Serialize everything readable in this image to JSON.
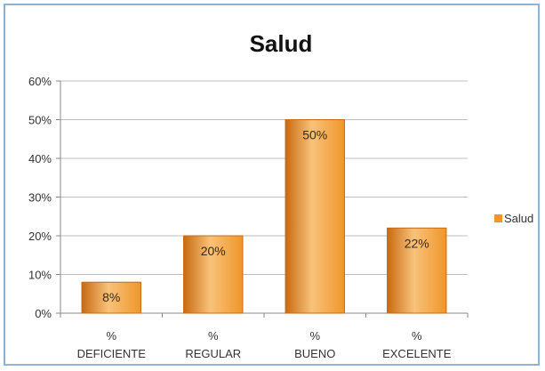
{
  "chart_data": {
    "type": "bar",
    "title": "Salud",
    "categories": [
      [
        "%",
        "DEFICIENTE"
      ],
      [
        "%",
        "REGULAR"
      ],
      [
        "%",
        "BUENO"
      ],
      [
        "%",
        "EXCELENTE"
      ]
    ],
    "series": [
      {
        "name": "Salud",
        "values": [
          8,
          20,
          50,
          22
        ]
      }
    ],
    "data_labels": [
      "8%",
      "20%",
      "50%",
      "22%"
    ],
    "ylim": [
      0,
      60
    ],
    "yticks": [
      0,
      10,
      20,
      30,
      40,
      50,
      60
    ],
    "ytick_labels": [
      "0%",
      "10%",
      "20%",
      "30%",
      "40%",
      "50%",
      "60%"
    ],
    "grid": true,
    "legend_position": "right",
    "colors": {
      "bar": "#f0962a",
      "bar_light": "#f8c27a",
      "bar_dark": "#c86a12",
      "grid": "#bfbfbf",
      "frame": "#8fb3d9"
    }
  }
}
